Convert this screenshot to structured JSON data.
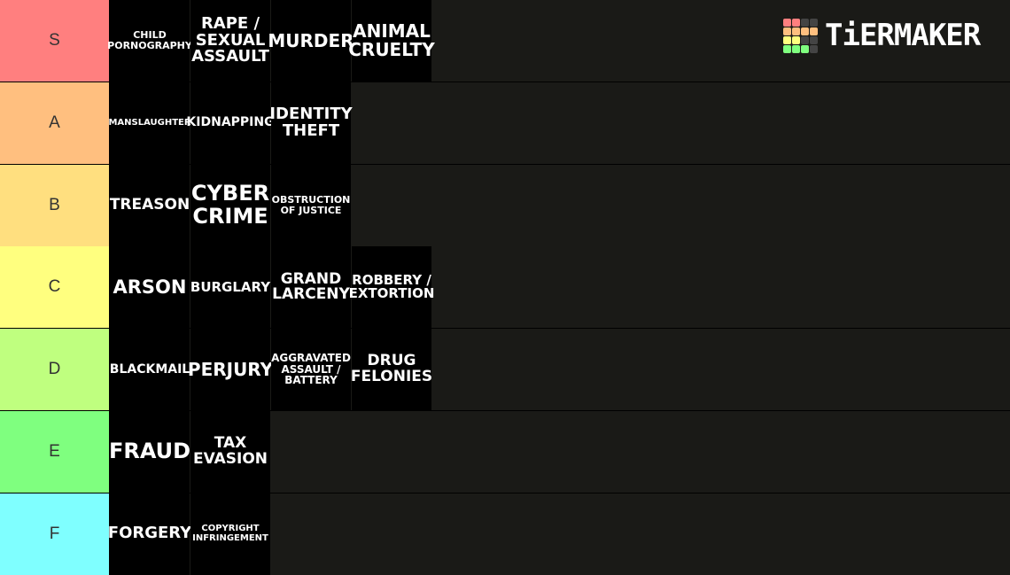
{
  "logo": {
    "text": "TiERMAKER",
    "grid_colors": [
      "#ff7f7f",
      "#ff7f7f",
      "#444",
      "#444",
      "#ffbf7f",
      "#ffbf7f",
      "#ffbf7f",
      "#ffbf7f",
      "#ffff7f",
      "#ffff7f",
      "#444",
      "#444",
      "#7fff7f",
      "#7fff7f",
      "#7fff7f",
      "#444"
    ]
  },
  "tiers": [
    {
      "label": "S",
      "color": "#ff7f7f",
      "items": [
        "CHILD\nPORNOGRAPHY",
        "RAPE /\nSEXUAL\nASSAULT",
        "MURDER",
        "ANIMAL\nCRUELTY"
      ]
    },
    {
      "label": "A",
      "color": "#ffbf7f",
      "items": [
        "MANSLAUGHTER",
        "KIDNAPPING",
        "IDENTITY\nTHEFT"
      ]
    },
    {
      "label": "B",
      "color": "#ffdf7f",
      "items": [
        "TREASON",
        "CYBER\nCRIME",
        "OBSTRUCTION\nOF JUSTICE"
      ]
    },
    {
      "label": "C",
      "color": "#ffff7f",
      "items": [
        "ARSON",
        "BURGLARY",
        "GRAND\nLARCENY",
        "ROBBERY /\nEXTORTION"
      ]
    },
    {
      "label": "D",
      "color": "#bfff7f",
      "items": [
        "BLACKMAIL",
        "PERJURY",
        "AGGRAVATED\nASSAULT /\nBATTERY",
        "DRUG\nFELONIES"
      ]
    },
    {
      "label": "E",
      "color": "#7fff7f",
      "items": [
        "FRAUD",
        "TAX\nEVASION"
      ]
    },
    {
      "label": "F",
      "color": "#7fffff",
      "items": [
        "FORGERY",
        "COPYRIGHT\nINFRINGEMENT"
      ]
    }
  ]
}
